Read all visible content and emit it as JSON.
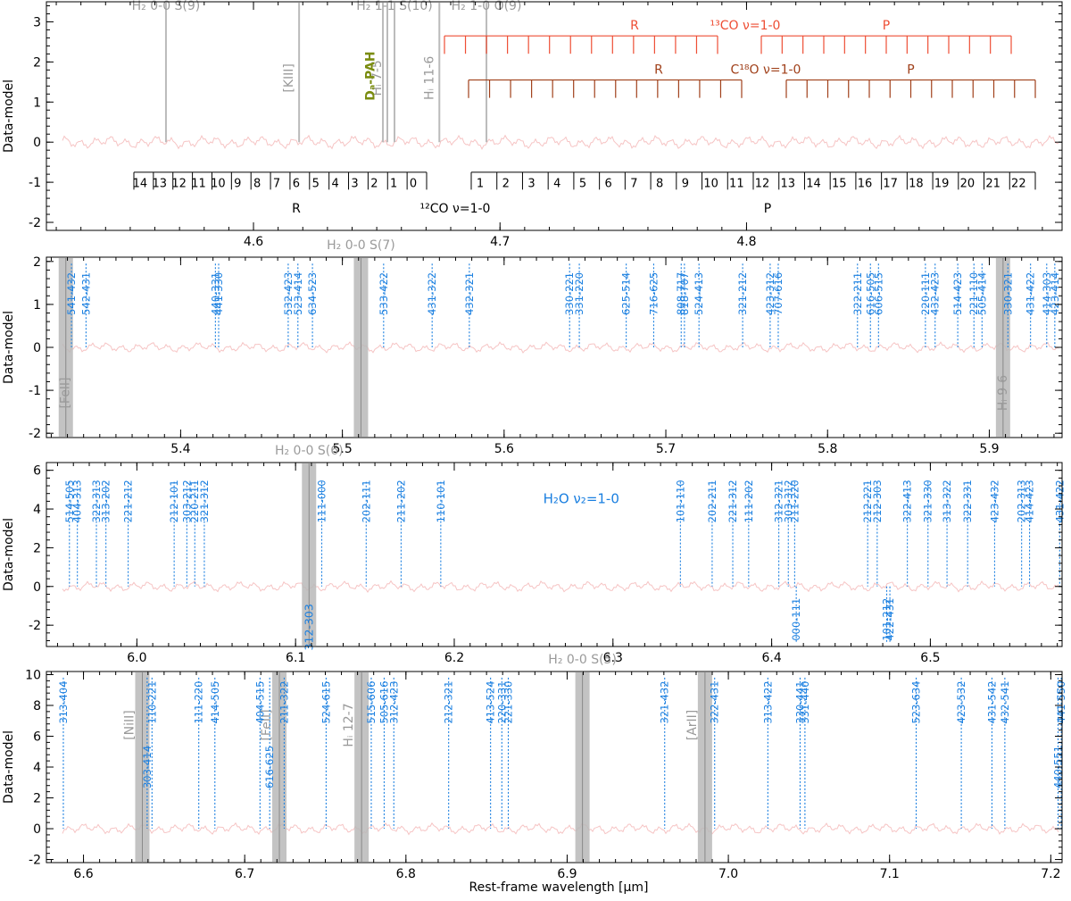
{
  "figure": {
    "ylabel": "Data-model",
    "xlabel": "Rest-frame wavelength [μm]"
  },
  "colors": {
    "water": "#1a7fe0",
    "grey": "#9a9a9a",
    "co13": "#ee4e34",
    "c18o": "#a0401a",
    "residual": "#f6c4c4",
    "pah": "#7a8c10",
    "axis": "#000000"
  },
  "chart_data": [
    {
      "type": "line",
      "panel": 1,
      "xlim": [
        4.516,
        4.928
      ],
      "ylim": [
        -2.2,
        3.5
      ],
      "xticks": [
        4.6,
        4.7,
        4.8
      ],
      "yticks": [
        -2,
        -1,
        0,
        1,
        2,
        3
      ],
      "grey_lines": [
        {
          "x": 4.5645,
          "label": "H₂ 0-0 S(9)",
          "label_pos": "top"
        },
        {
          "x": 4.6185,
          "label": "[KIII]",
          "label_pos": "side"
        },
        {
          "x": 4.6525,
          "label": "",
          "label_pos": "none"
        },
        {
          "x": 4.6543,
          "label": "Hᵢ 7-5",
          "label_pos": "side"
        },
        {
          "x": 4.6572,
          "label": "H₂ 1-1 S(10)",
          "label_pos": "top"
        },
        {
          "x": 4.6754,
          "label": "Hᵢ 11-6",
          "label_pos": "side"
        },
        {
          "x": 4.6945,
          "label": "H₂ 1-0 O(9)",
          "label_pos": "top"
        }
      ],
      "dpah_label": "Dₐ-PAH",
      "co13": {
        "label": "¹³CO ν=1-0",
        "r_label": "R",
        "p_label": "P"
      },
      "c18o": {
        "label": "C¹⁸O ν=1-0",
        "r_label": "R",
        "p_label": "P"
      },
      "co12": {
        "label": "¹²CO ν=1-0",
        "r_label": "R",
        "p_label": "P",
        "r_numbers": [
          "14",
          "13",
          "12",
          "11",
          "10",
          "9",
          "8",
          "7",
          "6",
          "5",
          "4",
          "3",
          "2",
          "1",
          "0"
        ],
        "p_numbers": [
          "1",
          "2",
          "3",
          "4",
          "5",
          "6",
          "7",
          "8",
          "9",
          "10",
          "11",
          "12",
          "13",
          "14",
          "15",
          "16",
          "17",
          "18",
          "19",
          "20",
          "21",
          "22"
        ]
      }
    },
    {
      "type": "line",
      "panel": 2,
      "xlim": [
        5.317,
        5.945
      ],
      "ylim": [
        -2.1,
        2.1
      ],
      "xticks": [
        5.4,
        5.5,
        5.6,
        5.7,
        5.8,
        5.9
      ],
      "yticks": [
        -2,
        -1,
        0,
        1,
        2
      ],
      "grey_bands": [
        {
          "x": 5.329,
          "label": "[FeII]",
          "label_pos": "bottom"
        },
        {
          "x": 5.5115,
          "label": "H₂ 0-0 S(7)",
          "label_pos": "top"
        },
        {
          "x": 5.9085,
          "label": "Hᵢ 9-6",
          "label_pos": "bottom"
        }
      ],
      "water_lines": [
        {
          "x": 5.3325,
          "label": "541-432"
        },
        {
          "x": 5.3415,
          "label": "542-431"
        },
        {
          "x": 5.4215,
          "label": "440-331"
        },
        {
          "x": 5.4235,
          "label": "441-330"
        },
        {
          "x": 5.4665,
          "label": "532-423"
        },
        {
          "x": 5.4725,
          "label": "523-414"
        },
        {
          "x": 5.4815,
          "label": "634-523"
        },
        {
          "x": 5.5255,
          "label": "533-422"
        },
        {
          "x": 5.5555,
          "label": "431-322"
        },
        {
          "x": 5.5785,
          "label": "432-321"
        },
        {
          "x": 5.6405,
          "label": "330-221"
        },
        {
          "x": 5.6465,
          "label": "331-220"
        },
        {
          "x": 5.6755,
          "label": "625-514"
        },
        {
          "x": 5.6925,
          "label": "716-625"
        },
        {
          "x": 5.7095,
          "label": "808-717"
        },
        {
          "x": 5.7115,
          "label": "818-707"
        },
        {
          "x": 5.7205,
          "label": "524-413"
        },
        {
          "x": 5.7475,
          "label": "321-212"
        },
        {
          "x": 5.7645,
          "label": "423-312"
        },
        {
          "x": 5.7695,
          "label": "707-616"
        },
        {
          "x": 5.8185,
          "label": "322-211"
        },
        {
          "x": 5.8265,
          "label": "616-505"
        },
        {
          "x": 5.8315,
          "label": "606-515"
        },
        {
          "x": 5.8605,
          "label": "220-111"
        },
        {
          "x": 5.8665,
          "label": "432-423"
        },
        {
          "x": 5.8805,
          "label": "514-423"
        },
        {
          "x": 5.8905,
          "label": "221-110"
        },
        {
          "x": 5.8955,
          "label": "505-414"
        },
        {
          "x": 5.9115,
          "label": "330-321"
        },
        {
          "x": 5.9255,
          "label": "431-422"
        },
        {
          "x": 5.9355,
          "label": "414-303"
        },
        {
          "x": 5.9405,
          "label": "423-414"
        }
      ]
    },
    {
      "type": "line",
      "panel": 3,
      "xlim": [
        5.943,
        6.583
      ],
      "ylim": [
        -3.1,
        6.4
      ],
      "xticks": [
        6.0,
        6.1,
        6.2,
        6.3,
        6.4,
        6.5
      ],
      "yticks": [
        -2,
        0,
        2,
        4,
        6
      ],
      "grey_bands": [
        {
          "x": 6.1085,
          "label": "H₂ 0-0 S(6)",
          "label_pos": "top"
        }
      ],
      "band_water_label": "312-303",
      "water_annotation": "H₂O ν₂=1-0",
      "water_lines": [
        {
          "x": 5.9575,
          "label": "514-505"
        },
        {
          "x": 5.9625,
          "label": "404-313"
        },
        {
          "x": 5.9745,
          "label": "322-313"
        },
        {
          "x": 5.9805,
          "label": "313-202"
        },
        {
          "x": 5.9945,
          "label": "221-212"
        },
        {
          "x": 6.0235,
          "label": "212-101"
        },
        {
          "x": 6.0315,
          "label": "303-212"
        },
        {
          "x": 6.0365,
          "label": "220-211"
        },
        {
          "x": 6.0425,
          "label": "321-312"
        },
        {
          "x": 6.1165,
          "label": "111-000"
        },
        {
          "x": 6.1445,
          "label": "202-111"
        },
        {
          "x": 6.1665,
          "label": "211-202"
        },
        {
          "x": 6.1915,
          "label": "110-101"
        },
        {
          "x": 6.3425,
          "label": "101-110"
        },
        {
          "x": 6.3625,
          "label": "202-211"
        },
        {
          "x": 6.3755,
          "label": "221-312"
        },
        {
          "x": 6.3855,
          "label": "111-202"
        },
        {
          "x": 6.4045,
          "label": "312-321"
        },
        {
          "x": 6.4105,
          "label": "303-312"
        },
        {
          "x": 6.4145,
          "label": "211-220"
        },
        {
          "x": 6.4155,
          "label": "000-111"
        },
        {
          "x": 6.4605,
          "label": "212-221"
        },
        {
          "x": 6.4665,
          "label": "212-303"
        },
        {
          "x": 6.4725,
          "label": "101-212"
        },
        {
          "x": 6.4745,
          "label": "422-431"
        },
        {
          "x": 6.4855,
          "label": "322-413"
        },
        {
          "x": 6.4985,
          "label": "321-330"
        },
        {
          "x": 6.5105,
          "label": "313-322"
        },
        {
          "x": 6.5235,
          "label": "322-331"
        },
        {
          "x": 6.5405,
          "label": "423-432"
        },
        {
          "x": 6.5575,
          "label": "202-313"
        },
        {
          "x": 6.5625,
          "label": "414-423"
        },
        {
          "x": 6.5815,
          "label": "431-422"
        }
      ]
    },
    {
      "type": "line",
      "panel": 4,
      "xlim": [
        6.577,
        7.207
      ],
      "ylim": [
        -2.2,
        10.2
      ],
      "xticks": [
        6.6,
        6.7,
        6.8,
        6.9,
        7.0,
        7.1,
        7.2
      ],
      "yticks": [
        -2,
        0,
        2,
        4,
        6,
        8,
        10
      ],
      "grey_bands": [
        {
          "x": 6.6365,
          "label": "[NiII]",
          "label_pos": "side"
        },
        {
          "x": 6.7215,
          "label": "[FeII]",
          "label_pos": "side"
        },
        {
          "x": 6.7725,
          "label": "Hᵢ 12-7",
          "label_pos": "side"
        },
        {
          "x": 6.9095,
          "label": "H₂ 0-0 S(5)",
          "label_pos": "top"
        },
        {
          "x": 6.9855,
          "label": "[ArII]",
          "label_pos": "side"
        }
      ],
      "water_lines": [
        {
          "x": 6.5875,
          "label": "313-404",
          "label_pos": "high"
        },
        {
          "x": 6.6395,
          "label": "303-414",
          "label_pos": "low"
        },
        {
          "x": 6.6425,
          "label": "110-221",
          "label_pos": "high"
        },
        {
          "x": 6.6715,
          "label": "111-220",
          "label_pos": "high"
        },
        {
          "x": 6.6815,
          "label": "414-505",
          "label_pos": "high"
        },
        {
          "x": 6.7095,
          "label": "404-515",
          "label_pos": "high"
        },
        {
          "x": 6.7155,
          "label": "616-625",
          "label_pos": "low"
        },
        {
          "x": 6.7245,
          "label": "211-322",
          "label_pos": "high"
        },
        {
          "x": 6.7505,
          "label": "524-615",
          "label_pos": "high"
        },
        {
          "x": 6.7785,
          "label": "515-606",
          "label_pos": "high"
        },
        {
          "x": 6.7865,
          "label": "505-616",
          "label_pos": "high"
        },
        {
          "x": 6.7925,
          "label": "312-423",
          "label_pos": "high"
        },
        {
          "x": 6.8265,
          "label": "212-321",
          "label_pos": "high"
        },
        {
          "x": 6.8525,
          "label": "413-524",
          "label_pos": "high"
        },
        {
          "x": 6.8595,
          "label": "220-331",
          "label_pos": "high"
        },
        {
          "x": 6.8635,
          "label": "221-330",
          "label_pos": "high"
        },
        {
          "x": 6.9605,
          "label": "321-432",
          "label_pos": "high"
        },
        {
          "x": 6.9915,
          "label": "322-431",
          "label_pos": "high"
        },
        {
          "x": 7.0245,
          "label": "313-422",
          "label_pos": "high"
        },
        {
          "x": 7.0445,
          "label": "330-441",
          "label_pos": "high"
        },
        {
          "x": 7.0475,
          "label": "331-440",
          "label_pos": "high"
        },
        {
          "x": 7.1165,
          "label": "523-634",
          "label_pos": "high"
        },
        {
          "x": 7.1445,
          "label": "423-532",
          "label_pos": "high"
        },
        {
          "x": 7.1635,
          "label": "431-542",
          "label_pos": "high"
        },
        {
          "x": 7.1715,
          "label": "432-541",
          "label_pos": "high"
        },
        {
          "x": 7.2045,
          "label": "440-551",
          "label_pos": "low"
        },
        {
          "x": 7.2065,
          "label": "441-550",
          "label_pos": "high"
        }
      ]
    }
  ]
}
